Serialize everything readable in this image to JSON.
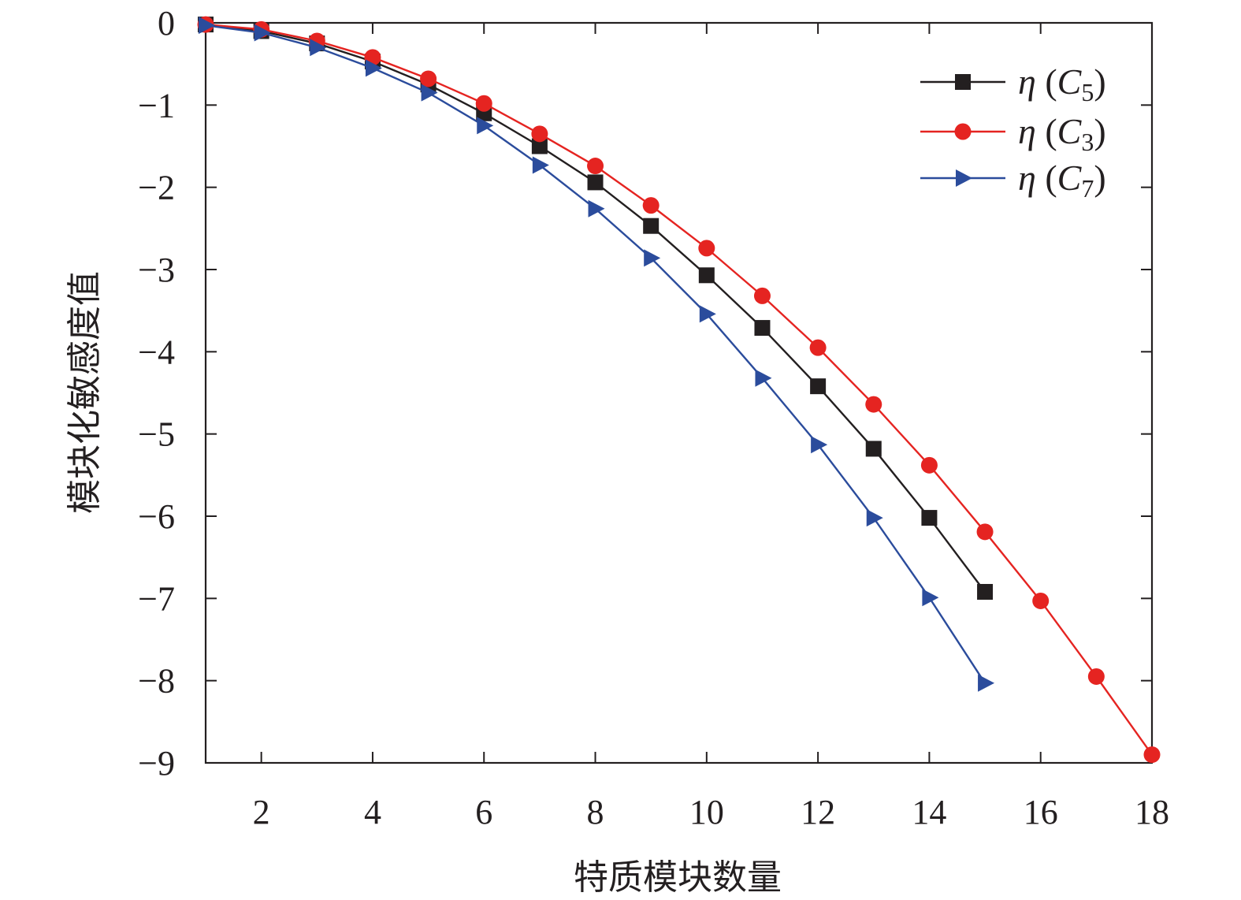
{
  "chart_data": {
    "type": "line",
    "title": "",
    "xlabel": "特质模块数量",
    "ylabel": "模块化敏感度值",
    "xlim": [
      1,
      18
    ],
    "ylim": [
      -9,
      0
    ],
    "xticks": [
      2,
      4,
      6,
      8,
      10,
      12,
      14,
      16,
      18
    ],
    "yticks": [
      0,
      -1,
      -2,
      -3,
      -4,
      -5,
      -6,
      -7,
      -8,
      -9
    ],
    "xtick_labels": [
      "2",
      "4",
      "6",
      "8",
      "10",
      "12",
      "14",
      "16",
      "18"
    ],
    "ytick_labels": [
      "0",
      "−1",
      "−2",
      "−3",
      "−4",
      "−5",
      "−6",
      "−7",
      "−8",
      "−9"
    ],
    "grid": false,
    "legend_position": "top-right",
    "series": [
      {
        "name": "η (C5)",
        "legend": {
          "symbol": "η",
          "open": "(",
          "base": "C",
          "sub": "5",
          "close": ")"
        },
        "color": "#231f20",
        "marker": "square",
        "x": [
          1,
          2,
          3,
          4,
          5,
          6,
          7,
          8,
          9,
          10,
          11,
          12,
          13,
          14,
          15
        ],
        "values": [
          -0.02,
          -0.1,
          -0.25,
          -0.47,
          -0.75,
          -1.1,
          -1.5,
          -1.94,
          -2.47,
          -3.07,
          -3.71,
          -4.42,
          -5.18,
          -6.02,
          -6.92
        ]
      },
      {
        "name": "η (C3)",
        "legend": {
          "symbol": "η",
          "open": "(",
          "base": "C",
          "sub": "3",
          "close": ")"
        },
        "color": "#e52421",
        "marker": "circle",
        "x": [
          1,
          2,
          3,
          4,
          5,
          6,
          7,
          8,
          9,
          10,
          11,
          12,
          13,
          14,
          15,
          16,
          17,
          18
        ],
        "values": [
          -0.02,
          -0.08,
          -0.22,
          -0.42,
          -0.68,
          -0.98,
          -1.35,
          -1.74,
          -2.22,
          -2.74,
          -3.32,
          -3.95,
          -4.64,
          -5.38,
          -6.19,
          -7.03,
          -7.95,
          -8.9
        ]
      },
      {
        "name": "η (C7)",
        "legend": {
          "symbol": "η",
          "open": "(",
          "base": "C",
          "sub": "7",
          "close": ")"
        },
        "color": "#2b4c9c",
        "marker": "triangle-right",
        "x": [
          1,
          2,
          3,
          4,
          5,
          6,
          7,
          8,
          9,
          10,
          11,
          12,
          13,
          14,
          15
        ],
        "values": [
          -0.03,
          -0.12,
          -0.3,
          -0.55,
          -0.85,
          -1.25,
          -1.73,
          -2.26,
          -2.86,
          -3.54,
          -4.32,
          -5.13,
          -6.02,
          -6.99,
          -8.03
        ]
      }
    ]
  }
}
